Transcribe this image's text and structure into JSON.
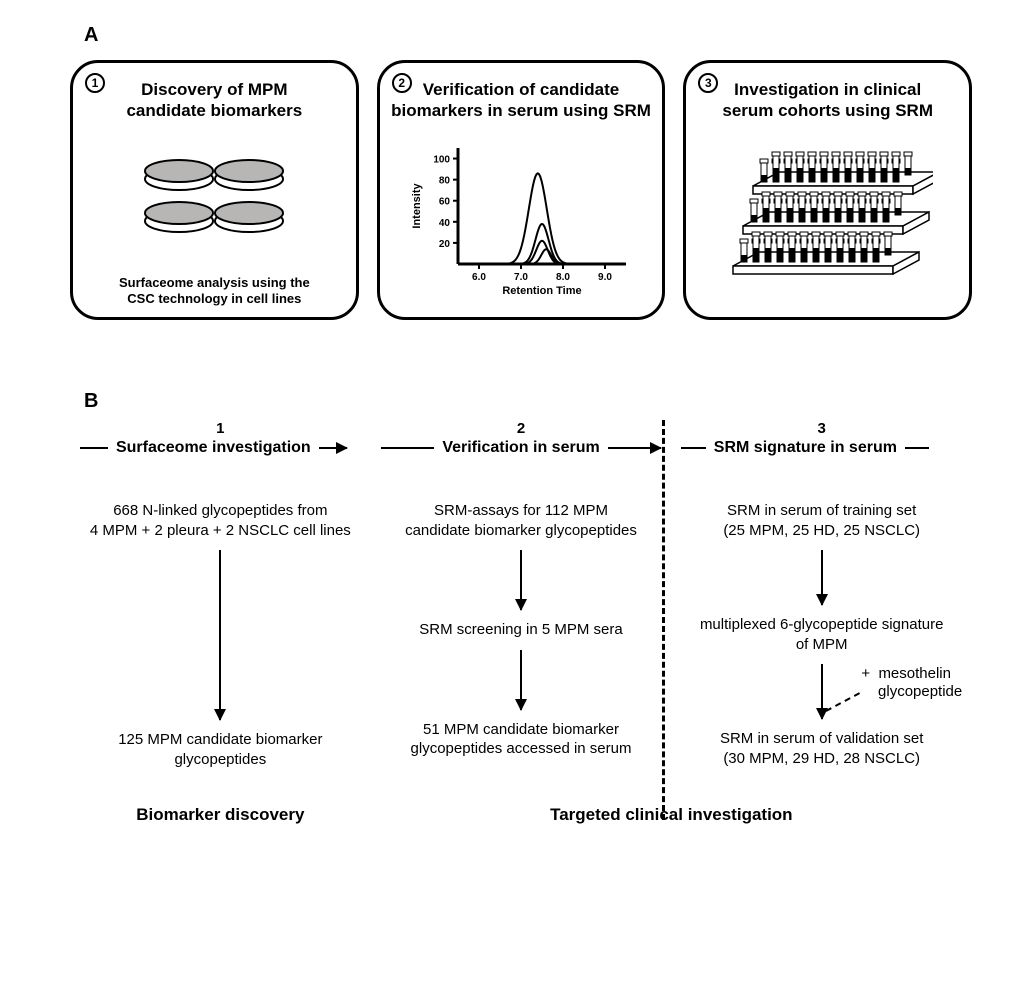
{
  "labels": {
    "panelA": "A",
    "panelB": "B"
  },
  "typography": {
    "panel_label_fontsize": 20,
    "card_title_fontsize": 17,
    "card_caption_fontsize": 13,
    "chart_axis_fontsize": 10,
    "col_num_fontsize": 15,
    "col_head_fontsize": 16,
    "body_fontsize": 15,
    "bottom_fontsize": 17
  },
  "colors": {
    "text": "#000000",
    "background": "#ffffff",
    "border": "#000000",
    "dish_fill": "#b8b6b4",
    "tube_fill": "#ffffff",
    "tube_liquid": "#000000"
  },
  "panelA": {
    "cards": [
      {
        "num": "1",
        "title_l1": "Discovery of MPM",
        "title_l2": "candidate biomarkers",
        "caption_l1": "Surfaceome analysis using the",
        "caption_l2": "CSC technology in cell lines"
      },
      {
        "num": "2",
        "title_l1": "Verification of candidate",
        "title_l2": "biomarkers in serum using SRM",
        "chart": {
          "xlabel": "Retention Time",
          "ylabel": "Intensity",
          "xticks": [
            "6.0",
            "7.0",
            "8.0",
            "9.0"
          ],
          "yticks": [
            "20",
            "40",
            "60",
            "80",
            "100"
          ],
          "xlim": [
            5.5,
            9.5
          ],
          "ylim": [
            0,
            110
          ],
          "curves": [
            {
              "peak_x": 7.4,
              "height": 86,
              "halfwidth": 0.55
            },
            {
              "peak_x": 7.5,
              "height": 38,
              "halfwidth": 0.4
            },
            {
              "peak_x": 7.5,
              "height": 22,
              "halfwidth": 0.35
            },
            {
              "peak_x": 7.6,
              "height": 14,
              "halfwidth": 0.3
            }
          ]
        }
      },
      {
        "num": "3",
        "title_l1": "Investigation in clinical",
        "title_l2": "serum cohorts using SRM"
      }
    ]
  },
  "panelB": {
    "columns": [
      {
        "num": "1",
        "head": "Surfaceome investigation",
        "rows": [
          "668 N-linked glycopeptides from\n4 MPM + 2 pleura + 2 NSCLC cell lines",
          "125 MPM candidate biomarker\nglycopeptides"
        ],
        "arrow_heights": [
          170
        ]
      },
      {
        "num": "2",
        "head": "Verification in serum",
        "rows": [
          "SRM-assays for 112 MPM\ncandidate biomarker glycopeptides",
          "SRM screening in 5 MPM sera",
          "51 MPM candidate biomarker\nglycopeptides accessed in serum"
        ],
        "arrow_heights": [
          60,
          60
        ]
      },
      {
        "num": "3",
        "head": "SRM signature in serum",
        "rows": [
          "SRM in serum of training set\n(25 MPM, 25 HD, 25 NSCLC)",
          "multiplexed 6-glycopeptide signature\nof MPM",
          "SRM in serum of validation set\n(30 MPM, 29 HD, 28 NSCLC)"
        ],
        "arrow_heights": [
          55,
          55
        ],
        "side_note": "+  mesothelin\n    glycopeptide"
      }
    ],
    "bottom": {
      "left": "Biomarker discovery",
      "right": "Targeted clinical investigation"
    }
  }
}
